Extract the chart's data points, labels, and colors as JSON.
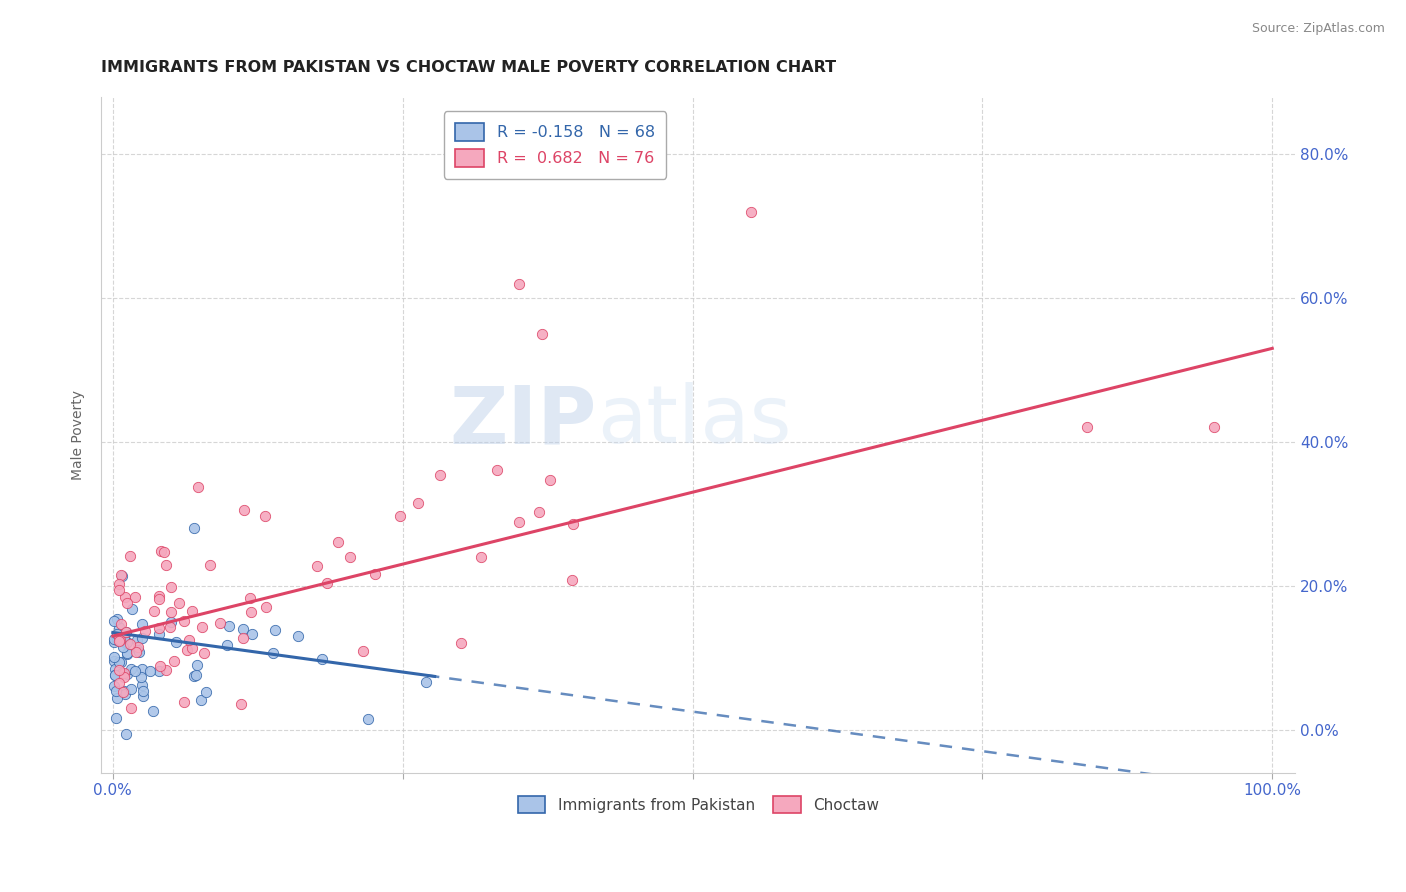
{
  "title": "IMMIGRANTS FROM PAKISTAN VS CHOCTAW MALE POVERTY CORRELATION CHART",
  "source": "Source: ZipAtlas.com",
  "ylabel": "Male Poverty",
  "xlim": [
    -0.01,
    1.02
  ],
  "ylim": [
    -0.06,
    0.88
  ],
  "y_tick_right": [
    0.0,
    0.2,
    0.4,
    0.6,
    0.8
  ],
  "y_tick_right_labels": [
    "0.0%",
    "20.0%",
    "40.0%",
    "60.0%",
    "80.0%"
  ],
  "x_ticks": [
    0.0,
    1.0
  ],
  "x_tick_labels": [
    "0.0%",
    "100.0%"
  ],
  "grid_color": "#cccccc",
  "background_color": "#ffffff",
  "legend_r1": "R = -0.158",
  "legend_n1": "N = 68",
  "legend_r2": "R =  0.682",
  "legend_n2": "N = 76",
  "series1_color": "#aac4e8",
  "series2_color": "#f5a8be",
  "line1_color": "#3366aa",
  "line2_color": "#dd4466",
  "title_color": "#222222",
  "axis_label_color": "#4466cc",
  "tick_color": "#4466cc"
}
